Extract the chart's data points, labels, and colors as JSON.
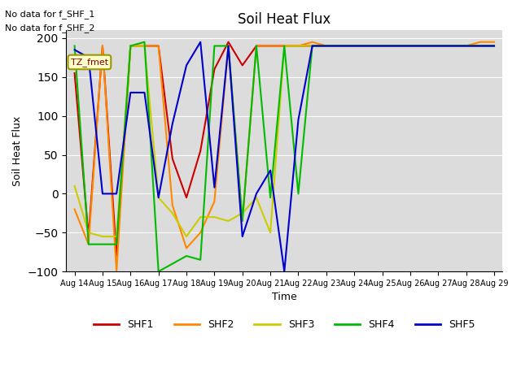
{
  "title": "Soil Heat Flux",
  "ylabel": "Soil Heat Flux",
  "xlabel": "Time",
  "text_no_data": [
    "No data for f_SHF_1",
    "No data for f_SHF_2"
  ],
  "legend_label": "TZ_fmet",
  "legend_entries": [
    "SHF1",
    "SHF2",
    "SHF3",
    "SHF4",
    "SHF5"
  ],
  "line_colors": {
    "SHF1": "#cc0000",
    "SHF2": "#ff8800",
    "SHF3": "#cccc00",
    "SHF4": "#00bb00",
    "SHF5": "#0000cc"
  },
  "ylim": [
    -100,
    210
  ],
  "yticks": [
    -100,
    -50,
    0,
    50,
    100,
    150,
    200
  ],
  "background_color": "#dcdcdc",
  "x_labels": [
    "Aug 14",
    "Aug 15",
    "Aug 16",
    "Aug 17",
    "Aug 18",
    "Aug 19",
    "Aug 20",
    "Aug 21",
    "Aug 22",
    "Aug 23",
    "Aug 24",
    "Aug 25",
    "Aug 26",
    "Aug 27",
    "Aug 28",
    "Aug 29"
  ],
  "x_ticks_pos": [
    0,
    2,
    4,
    6,
    8,
    10,
    12,
    14,
    16,
    18,
    20,
    22,
    24,
    26,
    28,
    30
  ],
  "SHF1": [
    155,
    -55,
    190,
    -80,
    190,
    190,
    190,
    45,
    -5,
    55,
    160,
    195,
    165,
    190,
    190,
    190,
    190,
    190,
    190,
    190,
    190,
    190,
    190,
    190,
    190,
    190,
    190,
    190,
    190,
    190,
    190
  ],
  "SHF2": [
    -20,
    -65,
    190,
    -100,
    190,
    190,
    190,
    -15,
    -70,
    -50,
    -10,
    190,
    -35,
    190,
    190,
    190,
    190,
    195,
    190,
    190,
    190,
    190,
    190,
    190,
    190,
    190,
    190,
    190,
    190,
    195,
    195
  ],
  "SHF3": [
    10,
    -50,
    -55,
    -55,
    190,
    190,
    -5,
    -25,
    -55,
    -30,
    -30,
    -35,
    -25,
    -5,
    -50,
    190,
    190,
    190,
    190,
    190,
    190,
    190,
    190,
    190,
    190,
    190,
    190,
    190,
    190,
    190,
    190
  ],
  "SHF4": [
    190,
    -65,
    -65,
    -65,
    190,
    195,
    -100,
    -90,
    -80,
    -85,
    190,
    190,
    -35,
    190,
    -5,
    190,
    0,
    190,
    190,
    190,
    190,
    190,
    190,
    190,
    190,
    190,
    190,
    190,
    190,
    190,
    190
  ],
  "SHF5": [
    185,
    175,
    0,
    0,
    130,
    130,
    -5,
    90,
    165,
    195,
    8,
    190,
    -55,
    0,
    30,
    -100,
    95,
    190,
    190,
    190,
    190,
    190,
    190,
    190,
    190,
    190,
    190,
    190,
    190,
    190,
    190
  ],
  "n_points": 31
}
